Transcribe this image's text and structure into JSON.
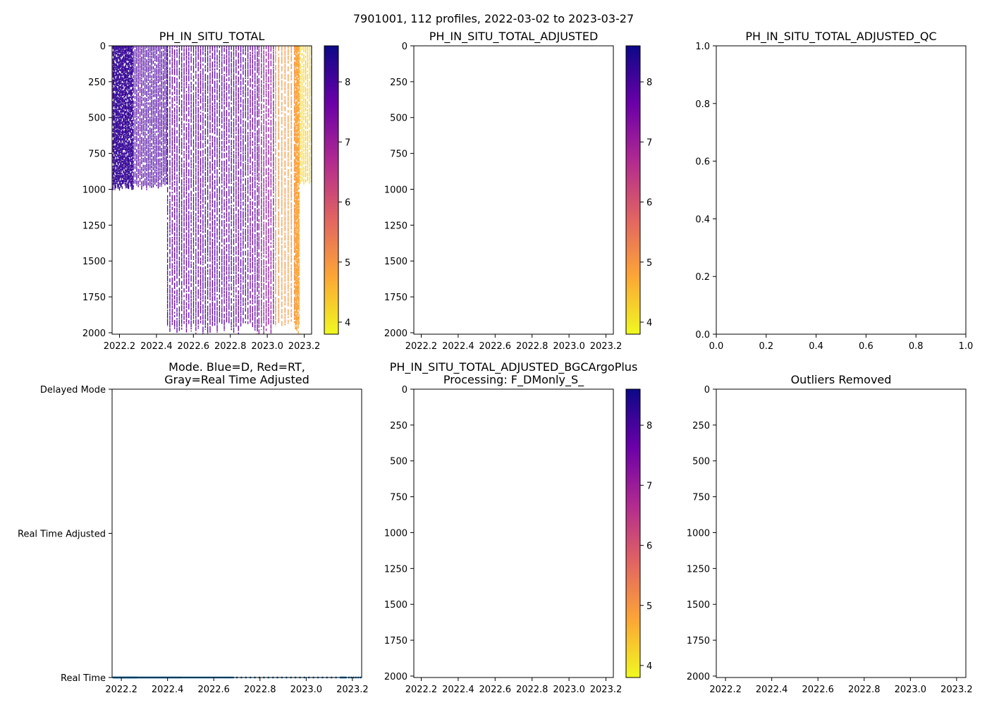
{
  "suptitle": "7901001, 112 profiles, 2022-03-02 to 2023-03-27",
  "colors": {
    "axes": "#000000",
    "mode_series": "#1f77b4",
    "colormap": [
      "#f0f921",
      "#fca636",
      "#e16462",
      "#b12a90",
      "#6a00a8",
      "#0d0887"
    ]
  },
  "chart_data": [
    {
      "id": "ph_raw",
      "type": "heatmap",
      "title": "PH_IN_SITU_TOTAL",
      "xlabel": "",
      "ylabel": "",
      "xlim": [
        2022.16,
        2023.24
      ],
      "ylim": [
        2010,
        0
      ],
      "xticks": [
        "2022.2",
        "2022.4",
        "2022.6",
        "2022.8",
        "2023.0",
        "2023.2"
      ],
      "yticks": [
        "0",
        "250",
        "500",
        "750",
        "1000",
        "1250",
        "1500",
        "1750",
        "2000"
      ],
      "colorbar": {
        "vmin": 3.8,
        "vmax": 8.6,
        "ticks": [
          "4",
          "5",
          "6",
          "7",
          "8"
        ]
      },
      "profiles": [
        {
          "start": 2022.165,
          "end": 2022.27,
          "step": 0.005,
          "value": 8.2,
          "max_depth": 1000
        },
        {
          "start": 2022.275,
          "end": 2022.455,
          "step": 0.009,
          "value": 7.9,
          "max_depth": 1000
        },
        {
          "start": 2022.46,
          "end": 2022.95,
          "step": 0.0128,
          "value": 7.75,
          "max_depth": 2000
        },
        {
          "start": 2022.955,
          "end": 2023.04,
          "step": 0.013,
          "value": 7.2,
          "max_depth": 2000
        },
        {
          "start": 2023.045,
          "end": 2023.15,
          "step": 0.017,
          "value": 5.0,
          "max_depth": 2000
        },
        {
          "start": 2023.152,
          "end": 2023.175,
          "step": 0.004,
          "value": 4.8,
          "max_depth": 2000
        },
        {
          "start": 2023.178,
          "end": 2023.24,
          "step": 0.01,
          "value": 4.25,
          "max_depth": 960
        }
      ]
    },
    {
      "id": "ph_adjusted",
      "type": "heatmap",
      "title": "PH_IN_SITU_TOTAL_ADJUSTED",
      "xlim": [
        2022.16,
        2023.24
      ],
      "ylim": [
        2010,
        0
      ],
      "xticks": [
        "2022.2",
        "2022.4",
        "2022.6",
        "2022.8",
        "2023.0",
        "2023.2"
      ],
      "yticks": [
        "0",
        "250",
        "500",
        "750",
        "1000",
        "1250",
        "1500",
        "1750",
        "2000"
      ],
      "colorbar": {
        "vmin": 3.8,
        "vmax": 8.6,
        "ticks": [
          "4",
          "5",
          "6",
          "7",
          "8"
        ]
      },
      "profiles": []
    },
    {
      "id": "ph_adjusted_qc",
      "type": "scatter",
      "title": "PH_IN_SITU_TOTAL_ADJUSTED_QC",
      "xlim": [
        0.0,
        1.0
      ],
      "ylim": [
        0.0,
        1.0
      ],
      "xticks": [
        "0.0",
        "0.2",
        "0.4",
        "0.6",
        "0.8",
        "1.0"
      ],
      "yticks": [
        "0.0",
        "0.2",
        "0.4",
        "0.6",
        "0.8",
        "1.0"
      ],
      "points": []
    },
    {
      "id": "mode",
      "type": "scatter",
      "title": "Mode. Blue=D, Red=RT,",
      "title2": "Gray=Real Time Adjusted",
      "xlim": [
        2022.16,
        2023.24
      ],
      "xticks": [
        "2022.2",
        "2022.4",
        "2022.6",
        "2022.8",
        "2023.0",
        "2023.2"
      ],
      "categories": [
        "Delayed Mode",
        "Real Time Adjusted",
        "Real Time"
      ],
      "series": [
        {
          "name": "Real Time",
          "category": "Real Time",
          "segments": [
            {
              "start": 2022.165,
              "end": 2022.27,
              "step": 0.0025
            },
            {
              "start": 2022.275,
              "end": 2022.455,
              "step": 0.0045
            },
            {
              "start": 2022.46,
              "end": 2022.69,
              "step": 0.0064
            },
            {
              "start": 2022.7,
              "end": 2023.15,
              "step": 0.0195
            },
            {
              "start": 2023.152,
              "end": 2023.175,
              "step": 0.004
            },
            {
              "start": 2023.185,
              "end": 2023.235,
              "step": 0.01
            }
          ]
        }
      ]
    },
    {
      "id": "ph_bgcargoplus",
      "type": "heatmap",
      "title": "PH_IN_SITU_TOTAL_ADJUSTED_BGCArgoPlus",
      "title2": "Processing: F_DMonly_S_",
      "xlim": [
        2022.16,
        2023.24
      ],
      "ylim": [
        2010,
        0
      ],
      "xticks": [
        "2022.2",
        "2022.4",
        "2022.6",
        "2022.8",
        "2023.0",
        "2023.2"
      ],
      "yticks": [
        "0",
        "250",
        "500",
        "750",
        "1000",
        "1250",
        "1500",
        "1750",
        "2000"
      ],
      "colorbar": {
        "vmin": 3.8,
        "vmax": 8.6,
        "ticks": [
          "4",
          "5",
          "6",
          "7",
          "8"
        ]
      },
      "profiles": []
    },
    {
      "id": "outliers",
      "type": "scatter",
      "title": "Outliers Removed",
      "xlim": [
        2022.16,
        2023.24
      ],
      "ylim": [
        2010,
        0
      ],
      "xticks": [
        "2022.2",
        "2022.4",
        "2022.6",
        "2022.8",
        "2023.0",
        "2023.2"
      ],
      "yticks": [
        "0",
        "250",
        "500",
        "750",
        "1000",
        "1250",
        "1500",
        "1750",
        "2000"
      ],
      "points": []
    }
  ]
}
